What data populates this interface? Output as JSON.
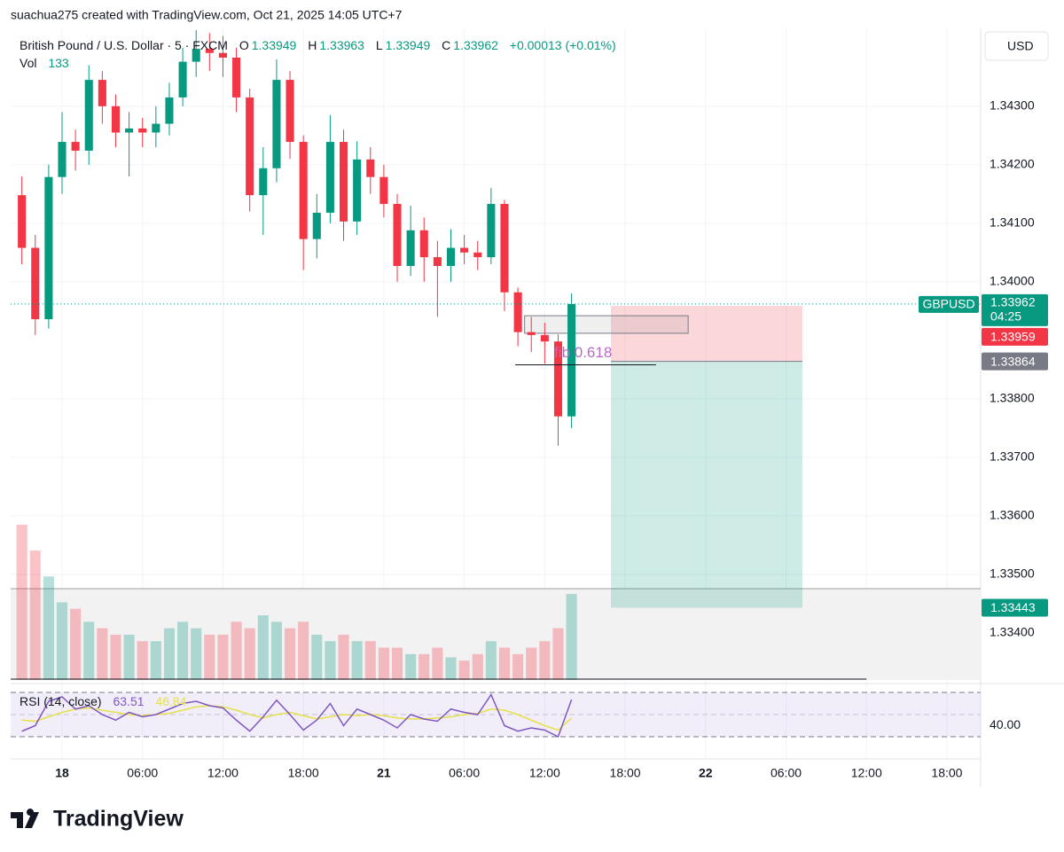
{
  "header": {
    "attribution": "suachua275 created with TradingView.com, Oct 21, 2025 14:05 UTC+7"
  },
  "legend": {
    "symbol": "British Pound / U.S. Dollar · 5 · FXCM",
    "ohlc": [
      {
        "key": "O",
        "value": 1.33949
      },
      {
        "key": "H",
        "value": 1.33963
      },
      {
        "key": "L",
        "value": 1.33949
      },
      {
        "key": "C",
        "value": 1.33962
      }
    ],
    "change": "+0.00013 (+0.01%)",
    "vol_label": "Vol"
  },
  "currency": "USD",
  "brand": "TradingView",
  "chart_data": {
    "type": "candlestick",
    "x": [
      -3,
      -2,
      -1,
      0,
      1,
      2,
      3,
      4,
      5,
      6,
      7,
      8,
      9,
      10,
      11,
      12,
      13,
      14,
      15,
      16,
      17,
      18,
      19,
      20,
      21,
      22,
      23,
      24,
      25,
      26,
      27,
      28,
      29,
      30,
      31,
      32,
      33,
      34,
      35,
      36,
      37,
      38
    ],
    "open": [
      1.34148,
      1.34058,
      1.33936,
      1.34179,
      1.34239,
      1.34224,
      1.34345,
      1.343,
      1.34255,
      1.34262,
      1.34255,
      1.3427,
      1.34315,
      1.34376,
      1.34398,
      1.34391,
      1.34383,
      1.34315,
      1.34148,
      1.34194,
      1.34345,
      1.34239,
      1.34073,
      1.34118,
      1.34239,
      1.34103,
      1.34209,
      1.34179,
      1.34133,
      1.34027,
      1.34088,
      1.34042,
      1.34027,
      1.34058,
      1.3405,
      1.34042,
      1.34133,
      1.33982,
      1.33914,
      1.33909,
      1.33898,
      1.3377
    ],
    "high": [
      1.3418,
      1.3408,
      1.342,
      1.3429,
      1.3426,
      1.3437,
      1.3436,
      1.3432,
      1.3429,
      1.3428,
      1.343,
      1.3434,
      1.344,
      1.3443,
      1.34425,
      1.3442,
      1.344,
      1.3433,
      1.3423,
      1.3438,
      1.3436,
      1.3425,
      1.3415,
      1.34285,
      1.3426,
      1.3424,
      1.3423,
      1.342,
      1.3415,
      1.3413,
      1.3411,
      1.3407,
      1.3409,
      1.3408,
      1.3407,
      1.3416,
      1.3414,
      1.3399,
      1.3394,
      1.3393,
      1.3391,
      1.3398
    ],
    "low": [
      1.3403,
      1.33909,
      1.3392,
      1.3415,
      1.3419,
      1.342,
      1.3427,
      1.3423,
      1.3418,
      1.3423,
      1.3423,
      1.3425,
      1.343,
      1.3435,
      1.3436,
      1.3435,
      1.3429,
      1.3412,
      1.3408,
      1.3417,
      1.3421,
      1.3402,
      1.3404,
      1.341,
      1.3407,
      1.3408,
      1.3415,
      1.3411,
      1.34,
      1.3401,
      1.34,
      1.3394,
      1.34,
      1.3403,
      1.3402,
      1.3403,
      1.3395,
      1.3389,
      1.3388,
      1.3386,
      1.3372,
      1.3375
    ],
    "close": [
      1.34058,
      1.33936,
      1.34179,
      1.34239,
      1.34224,
      1.34345,
      1.343,
      1.34255,
      1.34262,
      1.34255,
      1.3427,
      1.34315,
      1.34376,
      1.34398,
      1.34391,
      1.34383,
      1.34315,
      1.34148,
      1.34194,
      1.34345,
      1.34239,
      1.34073,
      1.34118,
      1.34239,
      1.34103,
      1.34209,
      1.34179,
      1.34133,
      1.34027,
      1.34088,
      1.34042,
      1.34027,
      1.34058,
      1.3405,
      1.34042,
      1.34133,
      1.33982,
      1.33914,
      1.33909,
      1.33898,
      1.3377,
      1.33962
    ],
    "volume": [
      240,
      200,
      160,
      120,
      110,
      90,
      80,
      70,
      70,
      60,
      60,
      80,
      90,
      80,
      70,
      70,
      90,
      80,
      100,
      90,
      80,
      90,
      70,
      60,
      70,
      60,
      60,
      50,
      50,
      40,
      40,
      50,
      35,
      30,
      40,
      60,
      50,
      40,
      50,
      60,
      80,
      133
    ],
    "up_color": "#089981",
    "down_color": "#f23645",
    "xlim": [
      -3.836,
      68.45
    ],
    "xticks": [
      {
        "value": 0,
        "label": "18"
      },
      {
        "value": 6,
        "label": "06:00"
      },
      {
        "value": 12,
        "label": "12:00"
      },
      {
        "value": 18,
        "label": "18:00"
      },
      {
        "value": 24,
        "label": "21"
      },
      {
        "value": 30,
        "label": "06:00"
      },
      {
        "value": 36,
        "label": "12:00"
      },
      {
        "value": 42,
        "label": "18:00"
      },
      {
        "value": 48,
        "label": "22"
      },
      {
        "value": 54,
        "label": "06:00"
      },
      {
        "value": 60,
        "label": "12:00"
      },
      {
        "value": 66,
        "label": "18:00"
      }
    ],
    "ylim": [
      1.33315,
      1.34433
    ],
    "yticks": [
      {
        "value": 1.343,
        "label": "1.34300"
      },
      {
        "value": 1.342,
        "label": "1.34200"
      },
      {
        "value": 1.341,
        "label": "1.34100"
      },
      {
        "value": 1.34,
        "label": "1.34000"
      },
      {
        "value": 1.338,
        "label": "1.33800"
      },
      {
        "value": 1.337,
        "label": "1.33700"
      },
      {
        "value": 1.336,
        "label": "1.33600"
      },
      {
        "value": 1.335,
        "label": "1.33500"
      },
      {
        "value": 1.334,
        "label": "1.33400"
      }
    ],
    "grid": true,
    "symbol_tag": "GBPUSD",
    "countdown": "04:25",
    "position": {
      "stop": 1.33959,
      "entry": 1.33864,
      "target": 1.33443,
      "x": [
        40.94,
        55.22
      ]
    },
    "fib": {
      "label": "fib 0.618",
      "value": 1.33858,
      "x": [
        33.8,
        44.3
      ]
    },
    "box": {
      "top": 1.33942,
      "bottom": 1.33912,
      "x": [
        34.5,
        46.7
      ]
    },
    "hline": {
      "value": 1.33321,
      "x": [
        -3.836,
        60
      ]
    },
    "rsi": {
      "title": "RSI (14, close)",
      "color": "#7e57c2",
      "ma_color": "#e6e04a",
      "values": [
        35,
        40,
        62,
        66,
        55,
        58,
        50,
        45,
        52,
        48,
        50,
        55,
        60,
        62,
        58,
        56,
        45,
        35,
        48,
        63,
        50,
        36,
        45,
        60,
        40,
        55,
        50,
        45,
        38,
        50,
        46,
        44,
        55,
        52,
        50,
        68,
        40,
        35,
        38,
        36,
        30,
        63.51
      ],
      "ma": [
        45,
        44,
        48,
        52,
        55,
        56,
        54,
        52,
        50,
        49,
        50,
        51,
        54,
        57,
        58,
        57,
        54,
        50,
        47,
        50,
        52,
        49,
        46,
        48,
        50,
        49,
        50,
        49,
        47,
        46,
        46,
        47,
        48,
        50,
        51,
        55,
        54,
        50,
        45,
        40,
        36,
        46.84
      ],
      "ylim": [
        10.8,
        77.2
      ],
      "levels": [
        70,
        50,
        30
      ],
      "yticks": [
        {
          "value": 40,
          "label": "40.00"
        }
      ]
    }
  }
}
